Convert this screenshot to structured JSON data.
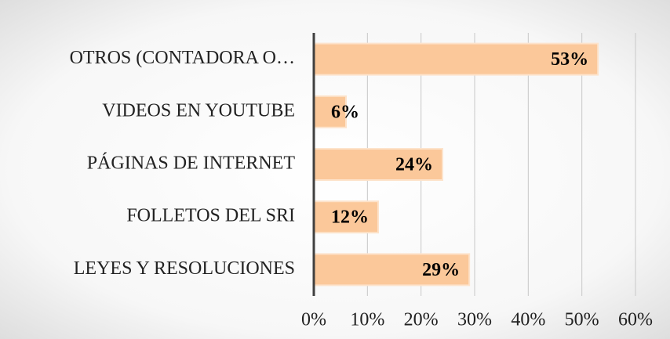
{
  "chart_data": {
    "type": "bar",
    "orientation": "horizontal",
    "categories": [
      "OTROS (CONTADORA O…",
      "VIDEOS EN YOUTUBE",
      "PÁGINAS DE INTERNET",
      "FOLLETOS DEL SRI",
      "LEYES Y RESOLUCIONES"
    ],
    "values": [
      53,
      6,
      24,
      12,
      29
    ],
    "value_labels": [
      "53%",
      "6%",
      "24%",
      "12%",
      "29%"
    ],
    "color": "#fbc89a",
    "xlim": [
      0,
      60
    ],
    "xticks": [
      {
        "value": 0,
        "label": "0%"
      },
      {
        "value": 10,
        "label": "10%"
      },
      {
        "value": 20,
        "label": "20%"
      },
      {
        "value": 30,
        "label": "30%"
      },
      {
        "value": 40,
        "label": "40%"
      },
      {
        "value": 50,
        "label": "50%"
      },
      {
        "value": 60,
        "label": "60%"
      }
    ],
    "grid": true
  }
}
